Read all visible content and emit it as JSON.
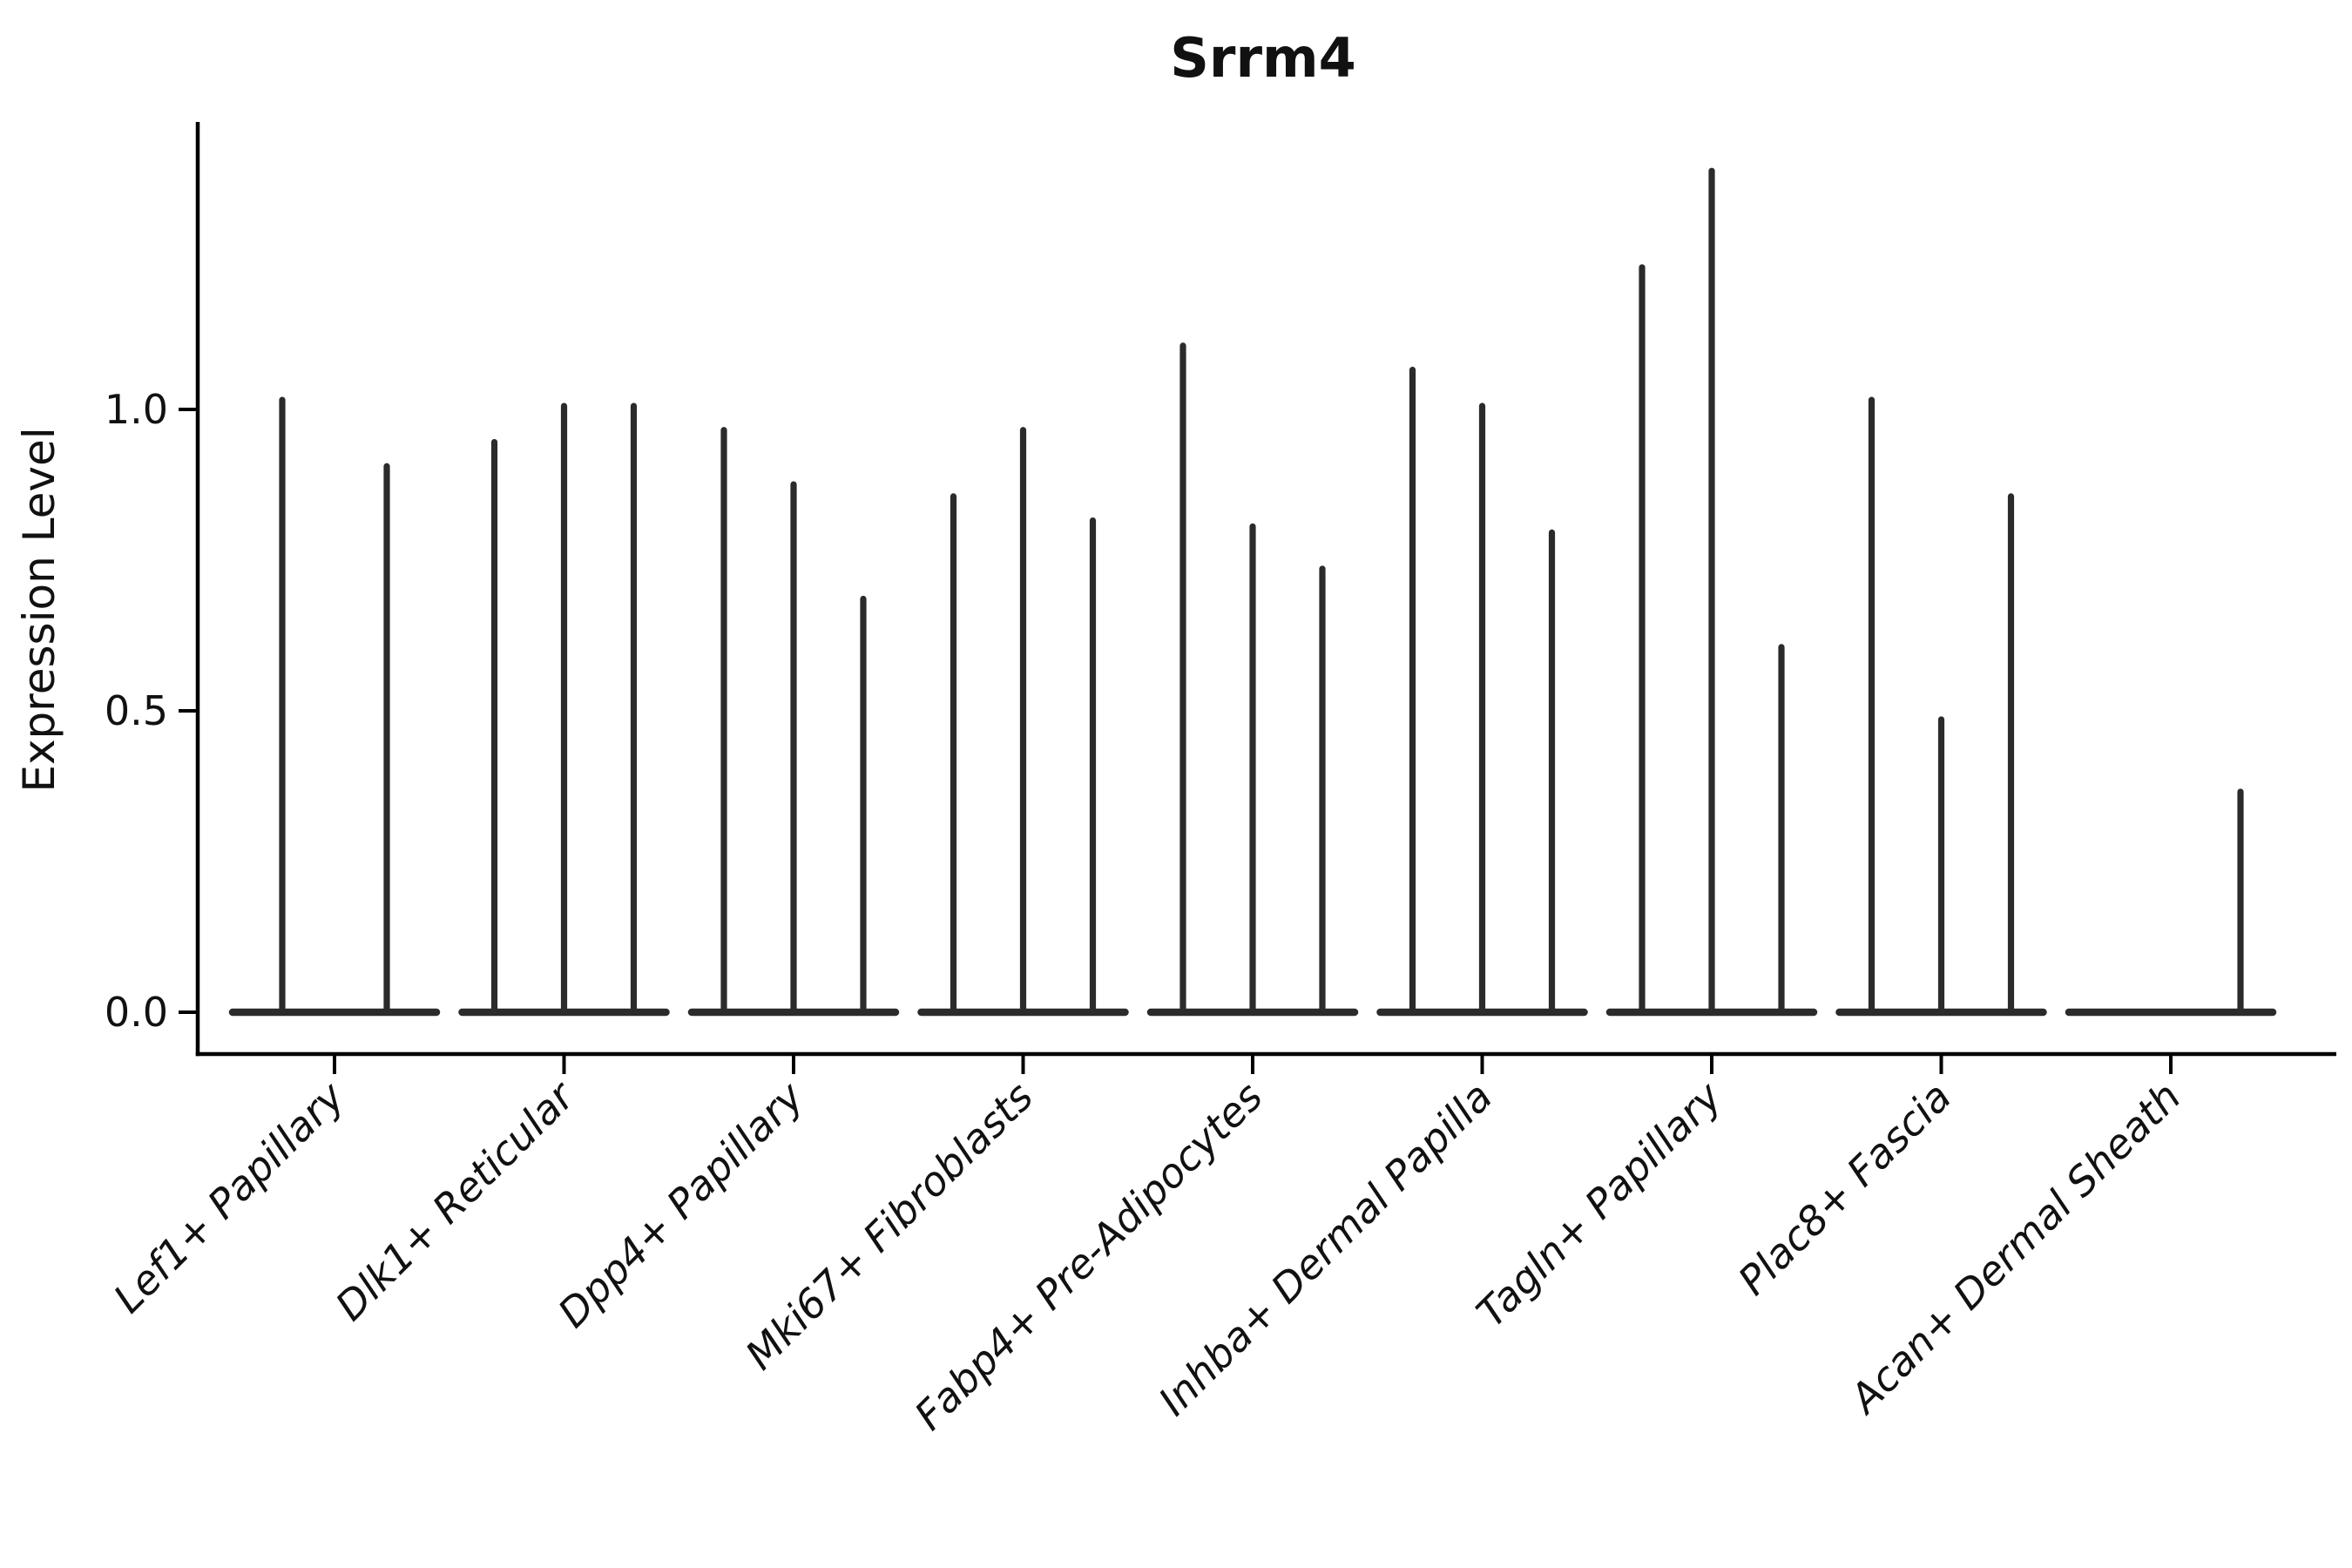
{
  "chart_data": {
    "type": "violin",
    "title": "Srrm4",
    "ylabel": "Expression Level",
    "xlabel": "",
    "ylim": [
      -0.07,
      1.48
    ],
    "yticks": [
      0.0,
      0.5,
      1.0
    ],
    "ytick_labels": [
      "0.0",
      "0.5",
      "1.0"
    ],
    "grid": false,
    "legend": null,
    "style": {
      "violin_color": "#2b2b2b",
      "axis_color": "#000000",
      "text_color": "#111111",
      "background": "#ffffff"
    },
    "groups": [
      {
        "label": "Lef1+ Papillary",
        "violin_max_values": [
          1.02,
          0.91
        ]
      },
      {
        "label": "Dlk1+ Reticular",
        "violin_max_values": [
          0.95,
          1.01,
          1.01
        ]
      },
      {
        "label": "Dpp4+ Papillary",
        "violin_max_values": [
          0.97,
          0.88,
          0.69
        ]
      },
      {
        "label": "Mki67+ Fibroblasts",
        "violin_max_values": [
          0.86,
          0.97,
          0.82
        ]
      },
      {
        "label": "Fabp4+ Pre-Adipocytes",
        "violin_max_values": [
          1.11,
          0.81,
          0.74
        ]
      },
      {
        "label": "Inhba+ Dermal Papilla",
        "violin_max_values": [
          1.07,
          1.01,
          0.8
        ]
      },
      {
        "label": "Tagln+ Papillary",
        "violin_max_values": [
          1.24,
          1.4,
          0.61
        ]
      },
      {
        "label": "Plac8+ Fascia",
        "violin_max_values": [
          1.02,
          0.49,
          0.86
        ]
      },
      {
        "label": "Acan+ Dermal Sheath",
        "violin_max_values": [
          0.0,
          0.0,
          0.37
        ]
      }
    ]
  }
}
